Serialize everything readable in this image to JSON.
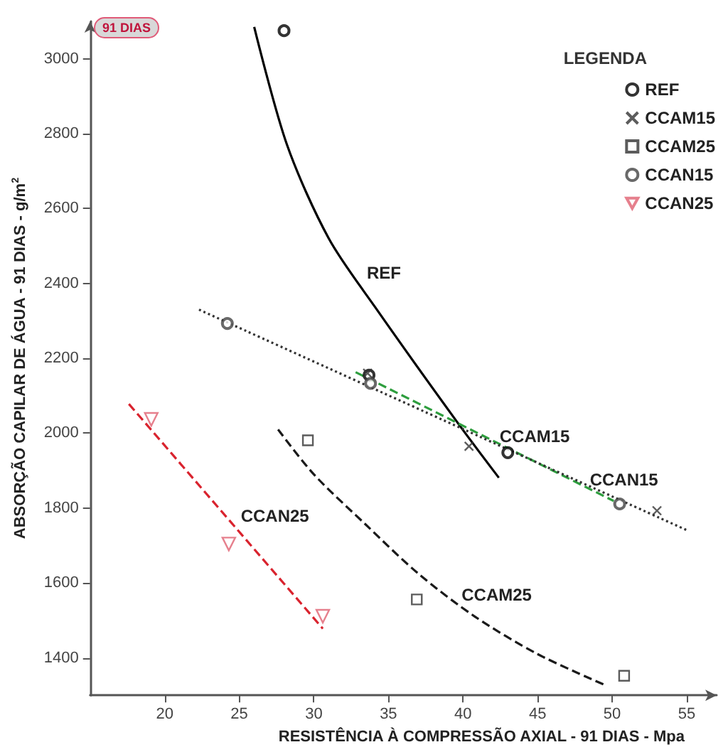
{
  "chart_data": {
    "type": "scatter",
    "xlabel": "RESISTÊNCIA À COMPRESSÃO AXIAL - 91 DIAS - Mpa",
    "ylabel": "ABSORÇÃO CAPILAR DE ÁGUA - 91 DIAS - g/m$^{2}$",
    "legend_title": "LEGENDA",
    "xlim": [
      15,
      57
    ],
    "xticks": [
      20,
      25,
      30,
      35,
      40,
      45,
      50,
      55
    ],
    "ylim": [
      1300,
      3100
    ],
    "yticks": [
      1400,
      1600,
      1800,
      2000,
      2200,
      2400,
      2600,
      2800,
      3000
    ],
    "grid": false,
    "legend": "top right",
    "series": [
      {
        "name": "REF",
        "type": "scatter",
        "marker": "circle",
        "color": "#000000",
        "x": [
          28.0,
          33.7,
          43.0
        ],
        "values": [
          3075,
          2155,
          1948
        ]
      },
      {
        "name": "REF",
        "type": "line",
        "line_style": "solid",
        "color": "#000000",
        "x": [
          26.0,
          28.2,
          31.0,
          34.1,
          39.6,
          42.4
        ],
        "values": [
          3085,
          2770,
          2520,
          2337,
          2030,
          1881
        ]
      },
      {
        "name": "CCAM15",
        "type": "scatter",
        "marker": "cross",
        "color": "#333333",
        "x": [
          33.6,
          40.4,
          53.0
        ],
        "values": [
          2160,
          1965,
          1793
        ]
      },
      {
        "name": "CCAM15",
        "type": "line",
        "line_style": "dashed",
        "color": "#2e9e3e",
        "x": [
          32.8,
          50.1
        ],
        "values": [
          2163,
          1819
        ]
      },
      {
        "name": "CCAM25",
        "type": "scatter",
        "marker": "square",
        "color": "#333333",
        "x": [
          29.6,
          36.9,
          50.8
        ],
        "values": [
          1981,
          1556,
          1352
        ]
      },
      {
        "name": "CCAM25",
        "type": "line",
        "line_style": "dashed",
        "color": "#1a1a1a",
        "x": [
          27.6,
          30.0,
          33.5,
          37.0,
          40.8,
          45.0,
          49.6
        ],
        "values": [
          2010,
          1890,
          1755,
          1625,
          1510,
          1410,
          1326
        ]
      },
      {
        "name": "CCAN15",
        "type": "scatter",
        "marker": "circle",
        "color": "#444444",
        "x": [
          24.2,
          33.8,
          50.5
        ],
        "values": [
          2293,
          2133,
          1811
        ]
      },
      {
        "name": "CCAN15",
        "type": "line",
        "line_style": "dotted",
        "color": "#333333",
        "x": [
          22.3,
          40.0,
          55.0
        ],
        "values": [
          2330,
          2011,
          1741
        ]
      },
      {
        "name": "CCAN25",
        "type": "scatter",
        "marker": "triangle",
        "color": "#e06070",
        "x": [
          19.1,
          24.3,
          30.6
        ],
        "values": [
          2037,
          1704,
          1511
        ]
      },
      {
        "name": "CCAN25",
        "type": "line",
        "line_style": "dashed",
        "color": "#d9232e",
        "x": [
          17.6,
          30.6
        ],
        "values": [
          2078,
          1478
        ]
      }
    ],
    "annotations": [
      "91 DIAS"
    ]
  }
}
